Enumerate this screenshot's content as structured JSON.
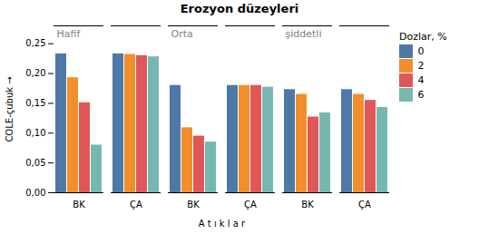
{
  "chart_data": {
    "type": "bar",
    "title": "Erozyon düzeyleri",
    "xlabel": "A t ı k l a r",
    "ylabel": "COLE-çubuk",
    "categories": [
      "BK",
      "ÇA",
      "BK",
      "ÇA",
      "BK",
      "ÇA"
    ],
    "series": [
      {
        "name": "0",
        "values": [
          0.233,
          0.233,
          0.18,
          0.18,
          0.173,
          0.173
        ]
      },
      {
        "name": "2",
        "values": [
          0.193,
          0.232,
          0.109,
          0.18,
          0.165,
          0.165
        ]
      },
      {
        "name": "4",
        "values": [
          0.151,
          0.23,
          0.095,
          0.18,
          0.127,
          0.155
        ]
      },
      {
        "name": "6",
        "values": [
          0.08,
          0.228,
          0.085,
          0.177,
          0.134,
          0.143
        ]
      }
    ],
    "ylim": [
      0,
      0.28
    ],
    "yticks": [
      {
        "value": 0.0,
        "label": "0,00"
      },
      {
        "value": 0.05,
        "label": "0,05"
      },
      {
        "value": 0.1,
        "label": "0,10"
      },
      {
        "value": 0.15,
        "label": "0,15"
      },
      {
        "value": 0.2,
        "label": "0,20"
      },
      {
        "value": 0.25,
        "label": "0,25"
      }
    ],
    "legend_title": "Dozlar, %",
    "legend": "right",
    "annotations": [
      "Hafif",
      "Orta",
      "şiddetli"
    ],
    "grid": false
  }
}
